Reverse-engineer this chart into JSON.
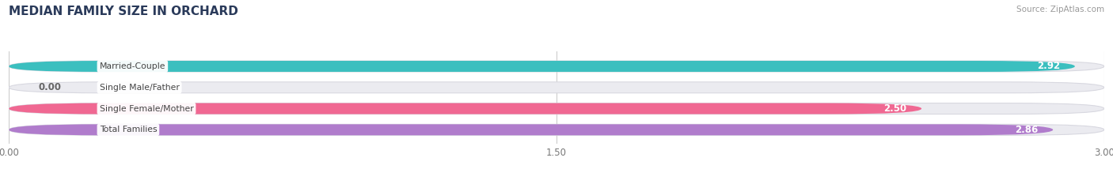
{
  "title": "MEDIAN FAMILY SIZE IN ORCHARD",
  "source": "Source: ZipAtlas.com",
  "categories": [
    "Married-Couple",
    "Single Male/Father",
    "Single Female/Mother",
    "Total Families"
  ],
  "values": [
    2.92,
    0.0,
    2.5,
    2.86
  ],
  "colors": [
    "#3bbfbf",
    "#a0b4e8",
    "#f06892",
    "#b07ccc"
  ],
  "xlim": [
    0,
    3.0
  ],
  "xticks": [
    0.0,
    1.5,
    3.0
  ],
  "xtick_labels": [
    "0.00",
    "1.50",
    "3.00"
  ],
  "bar_height": 0.52,
  "background_color": "#ffffff",
  "bar_bg_color": "#ebebf0",
  "bar_bg_border": "#d8d8e0",
  "title_color": "#2a3a5a",
  "source_color": "#999999",
  "label_text_color": "#444444",
  "value_color_inside": "#ffffff",
  "value_color_outside": "#666666"
}
